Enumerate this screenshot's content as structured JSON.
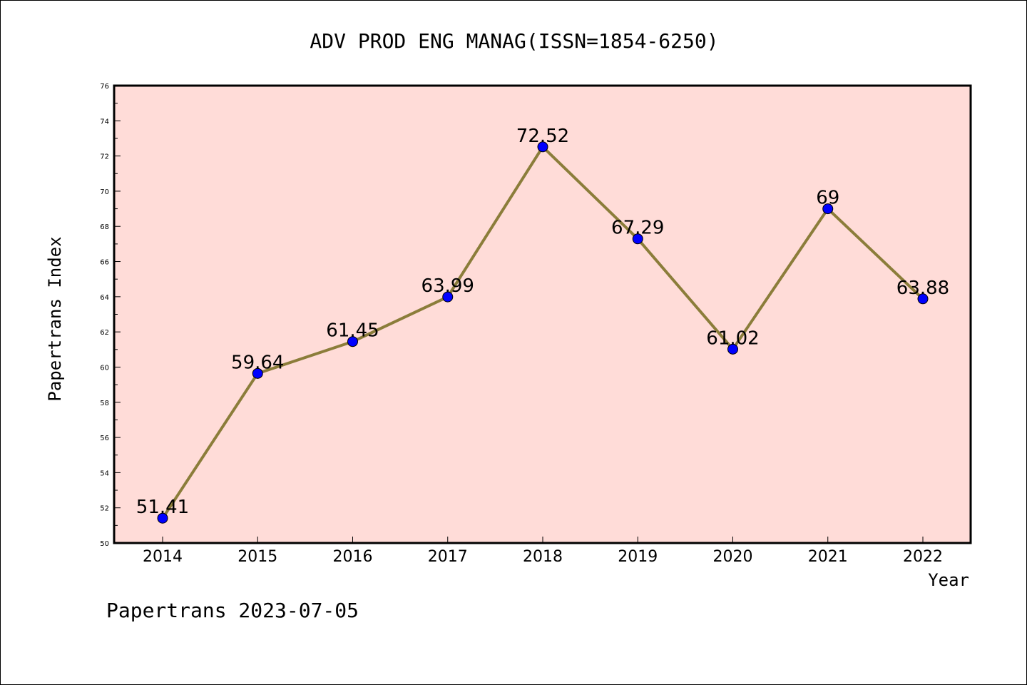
{
  "chart_data": {
    "type": "line",
    "title": "ADV PROD ENG MANAG(ISSN=1854-6250)",
    "xlabel": "Year",
    "ylabel": "Papertrans Index",
    "categories": [
      "2014",
      "2015",
      "2016",
      "2017",
      "2018",
      "2019",
      "2020",
      "2021",
      "2022"
    ],
    "values": [
      51.41,
      59.64,
      61.45,
      63.99,
      72.52,
      67.29,
      61.02,
      69,
      63.88
    ],
    "data_labels": [
      "51.41",
      "59.64",
      "61.45",
      "63.99",
      "72.52",
      "67.29",
      "61.02",
      "69",
      "63.88"
    ],
    "ylim": [
      50,
      76
    ],
    "yticks": [
      "50",
      "52",
      "54",
      "56",
      "58",
      "60",
      "62",
      "64",
      "66",
      "68",
      "70",
      "72",
      "74",
      "76"
    ],
    "grid": false,
    "legend": "none",
    "colors": {
      "plot_background": "#ffdcd8",
      "line": "#8b7d3a",
      "marker": "#0000ff"
    }
  },
  "footer": "Papertrans 2023-07-05"
}
